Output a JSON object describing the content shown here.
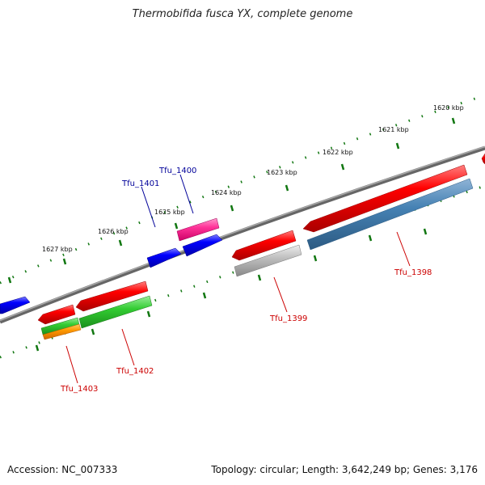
{
  "title": "Thermobifida fusca YX, complete genome",
  "footer": {
    "accession": "Accession: NC_007333",
    "stats": "Topology: circular; Length: 3,642,249 bp; Genes: 3,176"
  },
  "scale_labels": [
    "1620 kbp",
    "1621 kbp",
    "1622 kbp",
    "1623 kbp",
    "1624 kbp",
    "1625 kbp",
    "1626 kbp",
    "1627 kbp"
  ],
  "gene_labels": [
    "Tfu_1398",
    "Tfu_1399",
    "Tfu_1400",
    "Tfu_1401",
    "Tfu_1402",
    "Tfu_1403"
  ],
  "colors": {
    "backbone": "#808080",
    "red": "#ff0000",
    "blue": "#0000ff",
    "magenta": "#ff33aa",
    "green": "#33cc33",
    "orange": "#ff9900",
    "steelblue": "#4682b4",
    "gray": "#bbbbbb",
    "ticks": "#117711",
    "label_red": "#cc0000",
    "label_blue": "#000099"
  }
}
